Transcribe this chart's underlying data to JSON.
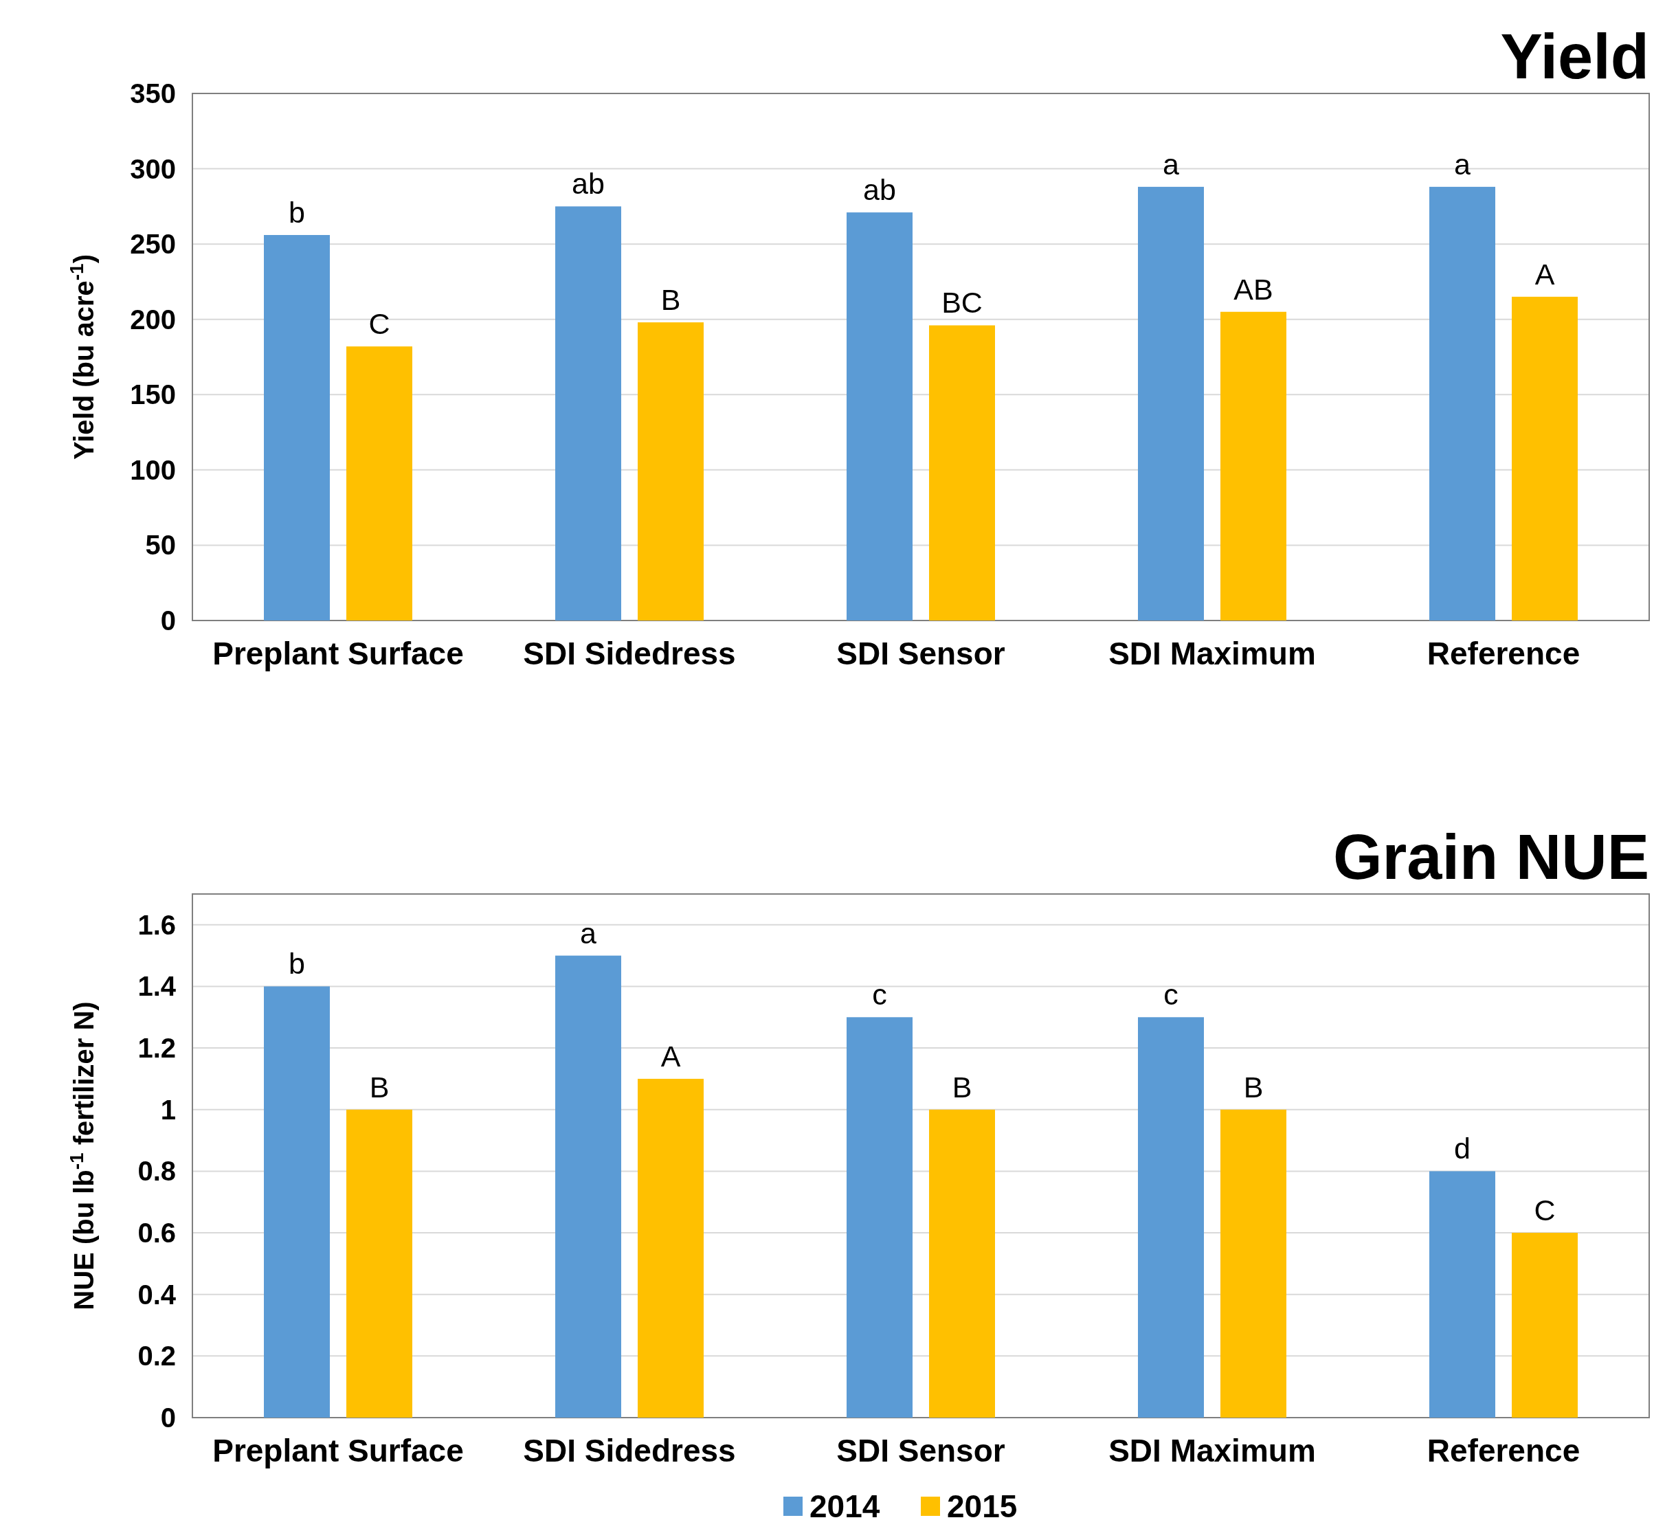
{
  "chart_data": [
    {
      "type": "bar",
      "title": "Yield",
      "ylabel": "Yield (bu acre$^{-1}$)",
      "categories": [
        "Preplant Surface",
        "SDI Sidedress",
        "SDI Sensor",
        "SDI Maximum",
        "Reference"
      ],
      "series": [
        {
          "color": "#5b9bd5",
          "values": [
            256,
            275,
            271,
            288,
            288
          ],
          "value_labels": [
            "b",
            "ab",
            "ab",
            "a",
            "a"
          ]
        },
        {
          "color": "#ffc000",
          "values": [
            182,
            198,
            196,
            205,
            215
          ],
          "value_labels": [
            "C",
            "B",
            "BC",
            "AB",
            "A"
          ]
        }
      ],
      "ylim": [
        0,
        350
      ],
      "yticks": [
        0,
        50,
        100,
        150,
        200,
        250,
        300,
        350
      ],
      "grid": "y",
      "legend": false
    },
    {
      "type": "bar",
      "title": "Grain NUE",
      "ylabel": "NUE (bu lb$^{-1}$ fertilizer N)",
      "categories": [
        "Preplant Surface",
        "SDI Sidedress",
        "SDI Sensor",
        "SDI Maximum",
        "Reference"
      ],
      "series": [
        {
          "name": "2014",
          "color": "#5b9bd5",
          "values": [
            1.4,
            1.5,
            1.3,
            1.3,
            0.8
          ],
          "value_labels": [
            "b",
            "a",
            "c",
            "c",
            "d"
          ]
        },
        {
          "name": "2015",
          "color": "#ffc000",
          "values": [
            1.0,
            1.1,
            1.0,
            1.0,
            0.6
          ],
          "value_labels": [
            "B",
            "A",
            "B",
            "B",
            "C"
          ]
        }
      ],
      "ylim": [
        0,
        1.7
      ],
      "yticks": [
        0,
        0.2,
        0.4,
        0.6,
        0.8,
        1,
        1.2,
        1.4,
        1.6
      ],
      "grid": "y",
      "legend": "bottom"
    }
  ]
}
